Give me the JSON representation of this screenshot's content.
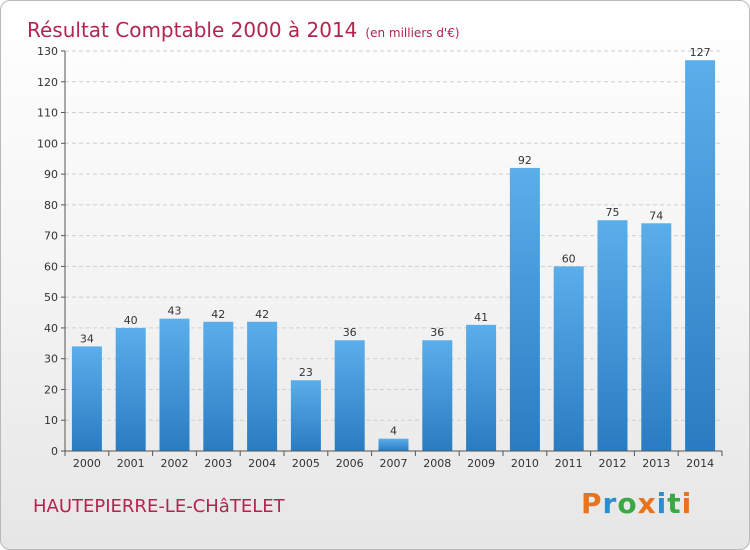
{
  "title": "Résultat Comptable 2000 à 2014",
  "subtitle": "(en milliers d'€)",
  "commune": "HAUTEPIERRE-LE-CHâTELET",
  "logo": {
    "letters": [
      "P",
      "r",
      "o",
      "x",
      "i",
      "t",
      "i"
    ],
    "colors": [
      "#e8731d",
      "#2a8fd1",
      "#3aa844",
      "#e8731d",
      "#2a8fd1",
      "#3aa844",
      "#e8731d"
    ]
  },
  "colors": {
    "bar_top": "#5aaeea",
    "bar_bottom": "#2a7cc2",
    "grid": "#cfcfcf",
    "accent": "#b3244e"
  },
  "chart_data": {
    "type": "bar",
    "title": "Résultat Comptable 2000 à 2014",
    "subtitle": "(en milliers d'€)",
    "xlabel": "",
    "ylabel": "",
    "categories": [
      "2000",
      "2001",
      "2002",
      "2003",
      "2004",
      "2005",
      "2006",
      "2007",
      "2008",
      "2009",
      "2010",
      "2011",
      "2012",
      "2013",
      "2014"
    ],
    "values": [
      34,
      40,
      43,
      42,
      42,
      23,
      36,
      4,
      36,
      41,
      92,
      60,
      75,
      74,
      127
    ],
    "ylim": [
      0,
      130
    ],
    "yticks": [
      0,
      10,
      20,
      30,
      40,
      50,
      60,
      70,
      80,
      90,
      100,
      110,
      120,
      130
    ],
    "grid": true,
    "legend": "none"
  }
}
